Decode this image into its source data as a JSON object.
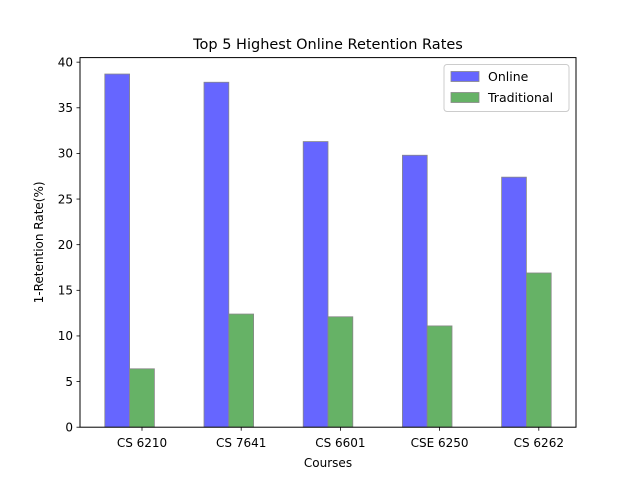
{
  "chart_data": {
    "type": "bar",
    "title": "Top 5 Highest Online Retention Rates",
    "xlabel": "Courses",
    "ylabel": "1-Retention Rate(%)",
    "categories": [
      "CS 6210",
      "CS 7641",
      "CS 6601",
      "CSE 6250",
      "CS 6262"
    ],
    "series": [
      {
        "name": "Online",
        "color": "#6666ff",
        "values": [
          38.7,
          37.8,
          31.3,
          29.8,
          27.4
        ]
      },
      {
        "name": "Traditional",
        "color": "#66b266",
        "values": [
          6.4,
          12.4,
          12.1,
          11.1,
          16.9
        ]
      }
    ],
    "ylim": [
      0,
      40.5
    ],
    "yticks": [
      0,
      5,
      10,
      15,
      20,
      25,
      30,
      35,
      40
    ],
    "legend_position": "top-right",
    "grid": false
  }
}
